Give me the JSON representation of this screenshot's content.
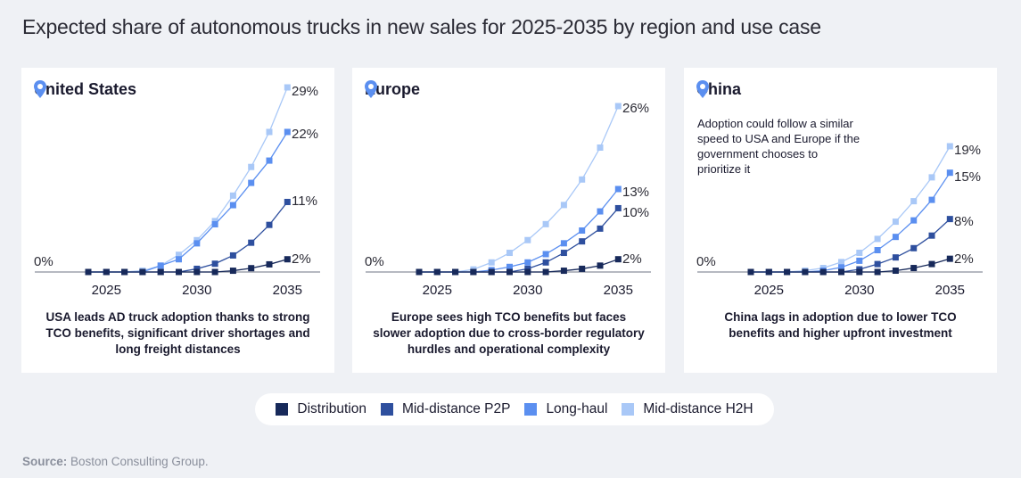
{
  "title": "Expected share of autonomous trucks in new sales for 2025-2035 by region and use case",
  "source_label": "Source:",
  "source_text": " Boston Consulting Group.",
  "colors": {
    "Distribution": "#17295a",
    "Mid-distance P2P": "#2e4f9e",
    "Long-haul": "#5b8ff0",
    "Mid-distance H2H": "#a9c8f7"
  },
  "legend": [
    "Distribution",
    "Mid-distance P2P",
    "Long-haul",
    "Mid-distance H2H"
  ],
  "panels": [
    {
      "region": "United States",
      "note": "",
      "caption": "USA leads AD truck adoption thanks to strong TCO benefits, significant driver shortages and long freight distances",
      "zero_label": "0%",
      "end_labels": [
        "2%",
        "11%",
        "22%",
        "29%"
      ]
    },
    {
      "region": "Europe",
      "note": "",
      "caption": "Europe sees high TCO benefits but faces slower adoption due to cross-border regulatory hurdles and operational complexity",
      "zero_label": "0%",
      "end_labels": [
        "2%",
        "10%",
        "13%",
        "26%"
      ]
    },
    {
      "region": "China",
      "note": "Adoption could follow a similar speed to USA and Europe if the government chooses to prioritize it",
      "caption": "China lags in adoption due to lower TCO benefits and higher upfront investment",
      "zero_label": "0%",
      "end_labels": [
        "2%",
        "8%",
        "15%",
        "19%"
      ]
    }
  ],
  "chart_data": [
    {
      "type": "line",
      "title": "United States",
      "x": [
        2024,
        2025,
        2026,
        2027,
        2028,
        2029,
        2030,
        2031,
        2032,
        2033,
        2034,
        2035
      ],
      "xticks": [
        "2025",
        "2030",
        "2035"
      ],
      "ylim": [
        0,
        29
      ],
      "series": [
        {
          "name": "Distribution",
          "values": [
            0,
            0,
            0,
            0,
            0,
            0,
            0,
            0,
            0.2,
            0.6,
            1.2,
            2
          ]
        },
        {
          "name": "Mid-distance P2P",
          "values": [
            0,
            0,
            0,
            0,
            0,
            0,
            0.5,
            1.3,
            2.6,
            4.6,
            7.4,
            11
          ]
        },
        {
          "name": "Long-haul",
          "values": [
            0,
            0,
            0,
            0,
            1,
            2,
            4.5,
            7.5,
            10.5,
            14,
            17.5,
            22
          ]
        },
        {
          "name": "Mid-distance H2H",
          "values": [
            0,
            0,
            0,
            0.2,
            1,
            2.7,
            5,
            8,
            12,
            16.5,
            22,
            29
          ]
        }
      ]
    },
    {
      "type": "line",
      "title": "Europe",
      "x": [
        2024,
        2025,
        2026,
        2027,
        2028,
        2029,
        2030,
        2031,
        2032,
        2033,
        2034,
        2035
      ],
      "xticks": [
        "2025",
        "2030",
        "2035"
      ],
      "ylim": [
        0,
        26
      ],
      "series": [
        {
          "name": "Distribution",
          "values": [
            0,
            0,
            0,
            0,
            0,
            0,
            0,
            0,
            0.2,
            0.5,
            1,
            2
          ]
        },
        {
          "name": "Mid-distance P2P",
          "values": [
            0,
            0,
            0,
            0,
            0,
            0,
            0.5,
            1.5,
            3,
            4.8,
            6.8,
            10
          ]
        },
        {
          "name": "Long-haul",
          "values": [
            0,
            0,
            0,
            0,
            0.3,
            0.8,
            1.5,
            2.8,
            4.5,
            6.5,
            9.5,
            13
          ]
        },
        {
          "name": "Mid-distance H2H",
          "values": [
            0,
            0,
            0,
            0.4,
            1.5,
            3,
            5,
            7.5,
            10.5,
            14.5,
            19.5,
            26
          ]
        }
      ]
    },
    {
      "type": "line",
      "title": "China",
      "x": [
        2024,
        2025,
        2026,
        2027,
        2028,
        2029,
        2030,
        2031,
        2032,
        2033,
        2034,
        2035
      ],
      "xticks": [
        "2025",
        "2030",
        "2035"
      ],
      "ylim": [
        0,
        19
      ],
      "series": [
        {
          "name": "Distribution",
          "values": [
            0,
            0,
            0,
            0,
            0,
            0,
            0,
            0,
            0.2,
            0.6,
            1.2,
            2
          ]
        },
        {
          "name": "Mid-distance P2P",
          "values": [
            0,
            0,
            0,
            0,
            0,
            0,
            0.4,
            1.2,
            2.2,
            3.6,
            5.5,
            8
          ]
        },
        {
          "name": "Long-haul",
          "values": [
            0,
            0,
            0,
            0,
            0.2,
            0.7,
            1.7,
            3.3,
            5.3,
            7.8,
            10.9,
            15
          ]
        },
        {
          "name": "Mid-distance H2H",
          "values": [
            0,
            0,
            0,
            0.2,
            0.6,
            1.5,
            2.9,
            5,
            7.6,
            10.7,
            14.3,
            19
          ]
        }
      ]
    }
  ]
}
